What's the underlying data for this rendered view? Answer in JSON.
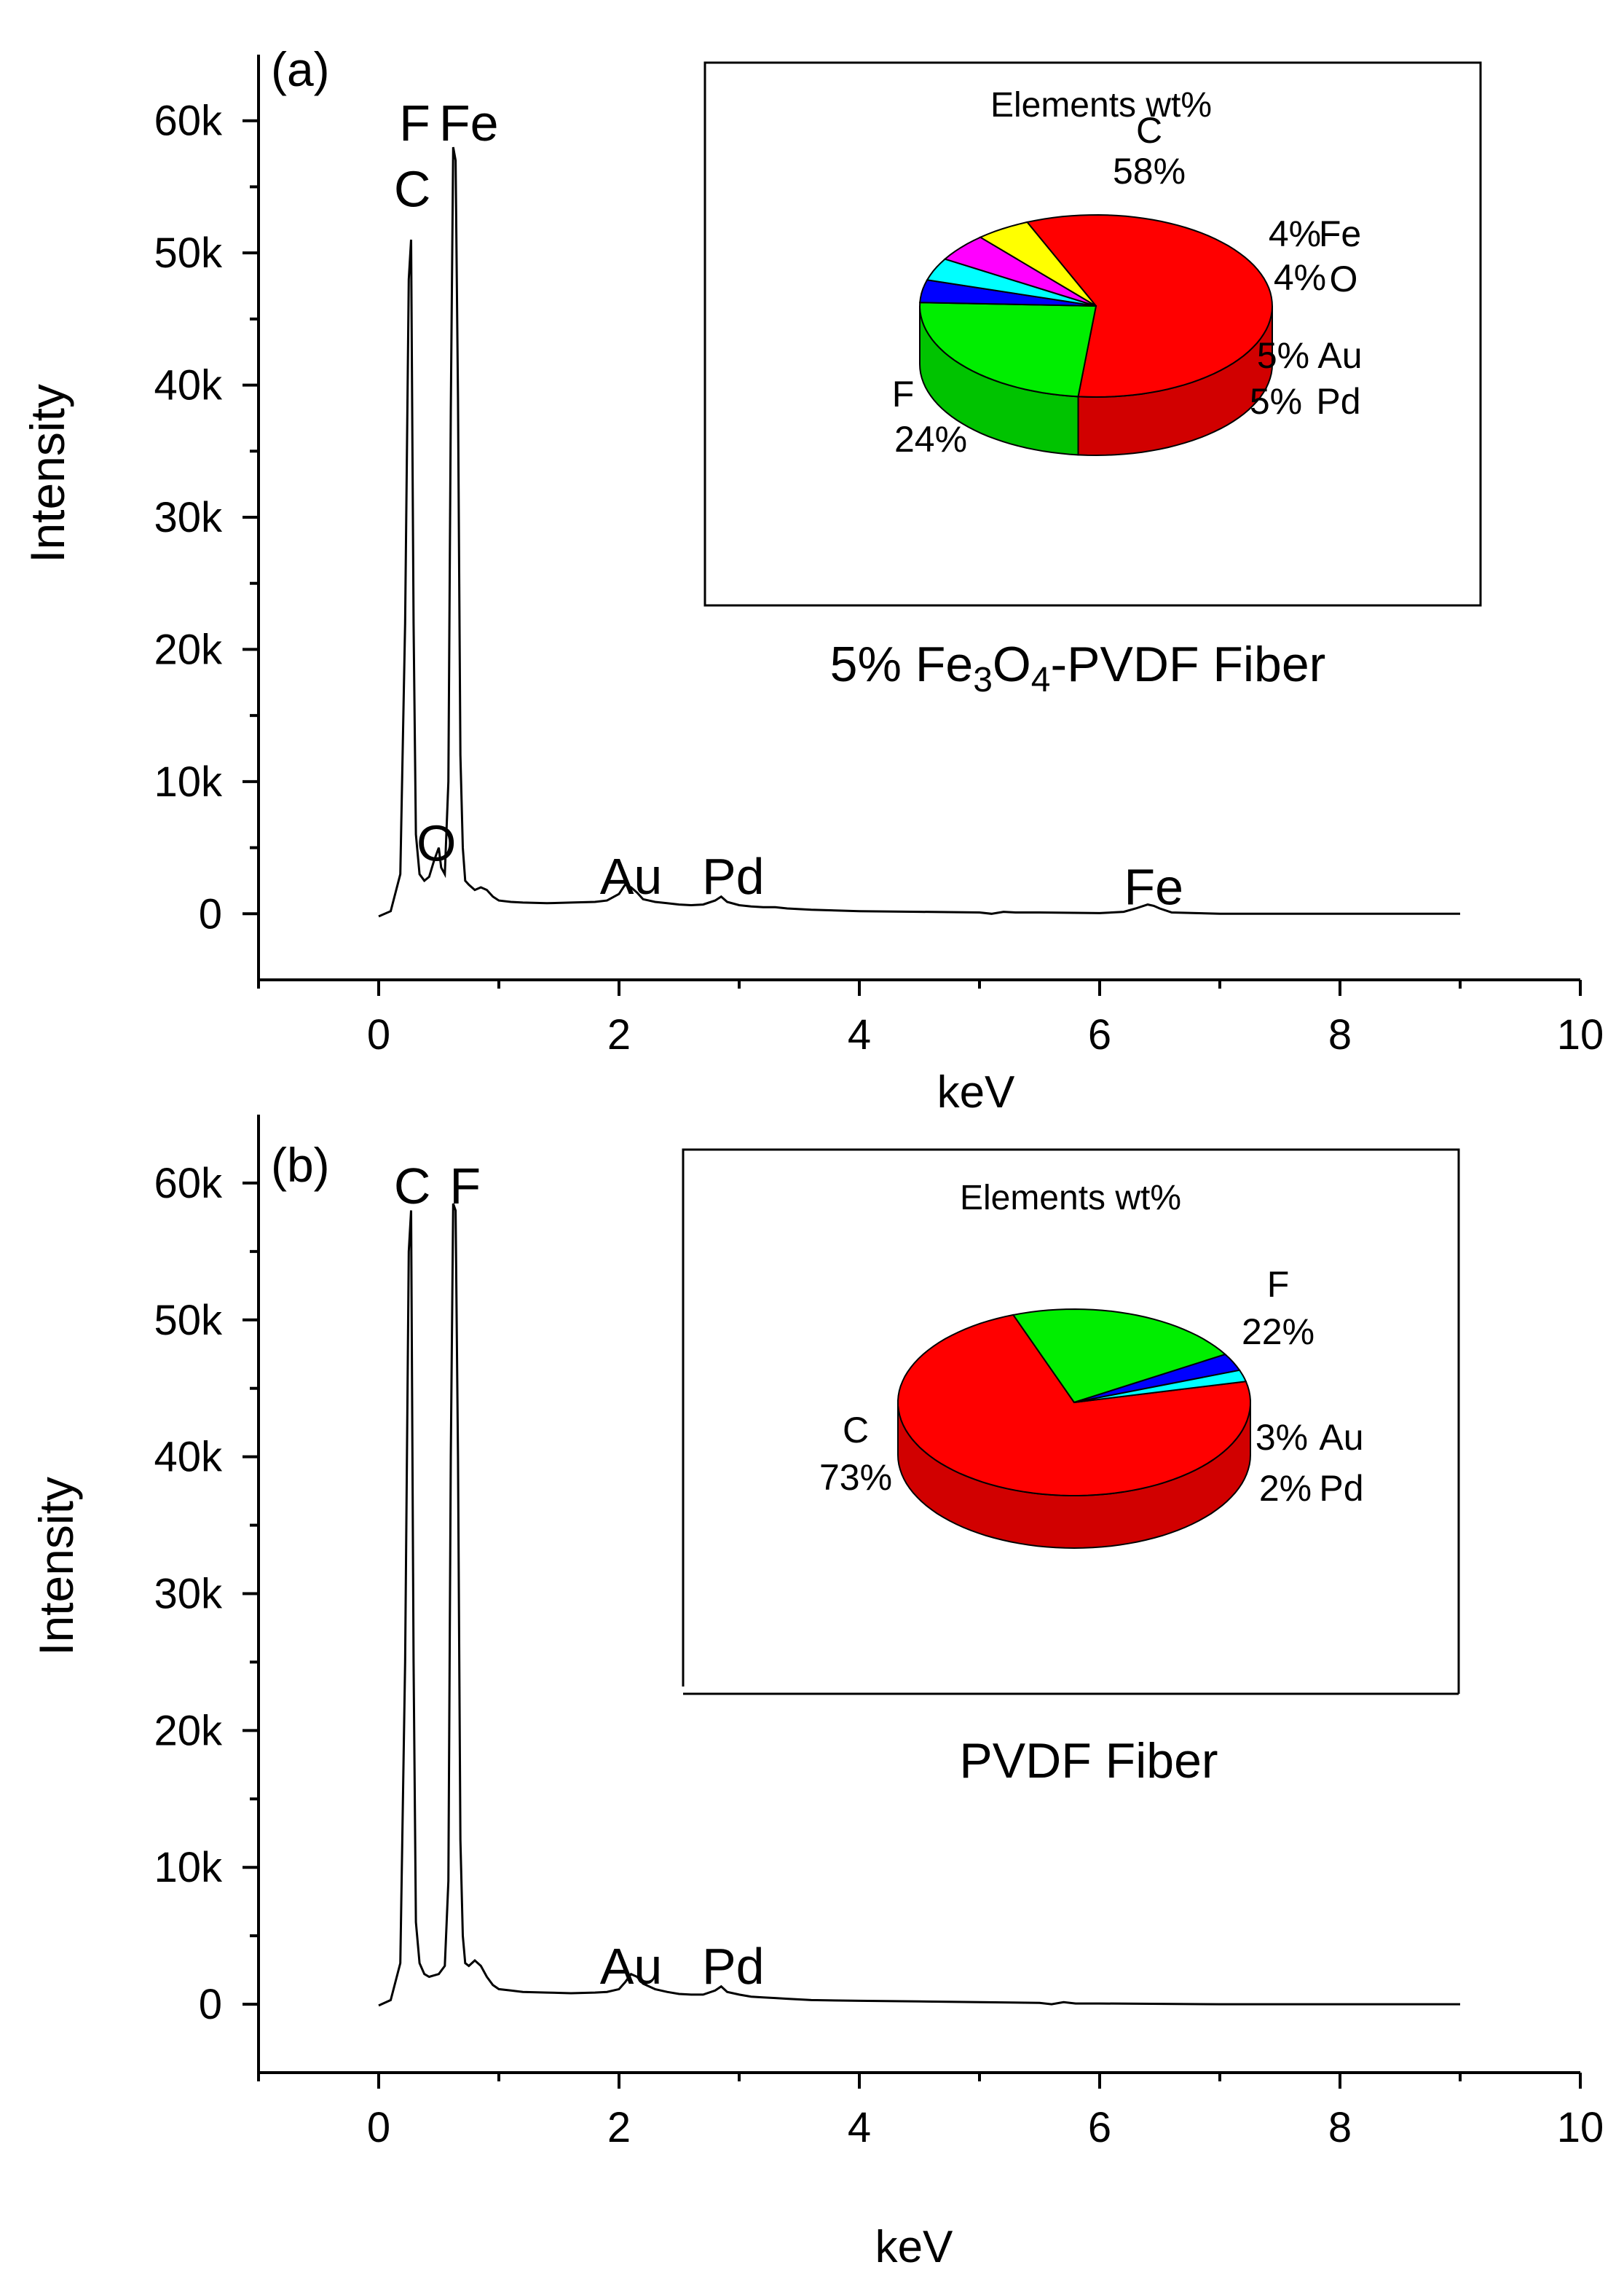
{
  "chart_data": [
    {
      "panel_label": "(a)",
      "type": "line",
      "xlabel": "keV",
      "ylabel": "Intensity",
      "xlim": [
        -1,
        10
      ],
      "ylim": [
        -5000,
        65000
      ],
      "xticks": [
        0,
        2,
        4,
        6,
        8,
        10
      ],
      "xtick_labels": [
        "0",
        "2",
        "4",
        "6",
        "8",
        "10"
      ],
      "yticks": [
        0,
        10000,
        20000,
        30000,
        40000,
        50000,
        60000
      ],
      "ytick_labels": [
        "0",
        "10k",
        "20k",
        "30k",
        "40k",
        "50k",
        "60k"
      ],
      "legend": "none",
      "grid": false,
      "series": [
        {
          "color": "#000000",
          "x": [
            0,
            0.1,
            0.18,
            0.22,
            0.25,
            0.27,
            0.29,
            0.31,
            0.34,
            0.38,
            0.42,
            0.46,
            0.5,
            0.52,
            0.55,
            0.58,
            0.6,
            0.62,
            0.64,
            0.66,
            0.68,
            0.7,
            0.72,
            0.75,
            0.8,
            0.85,
            0.9,
            0.95,
            1.0,
            1.1,
            1.2,
            1.4,
            1.6,
            1.8,
            1.9,
            2.0,
            2.05,
            2.1,
            2.15,
            2.2,
            2.3,
            2.4,
            2.5,
            2.6,
            2.7,
            2.8,
            2.85,
            2.9,
            3.0,
            3.1,
            3.2,
            3.3,
            3.4,
            3.6,
            4.0,
            4.5,
            5.0,
            5.1,
            5.2,
            5.3,
            5.5,
            6.0,
            6.2,
            6.3,
            6.4,
            6.45,
            6.5,
            6.6,
            6.8,
            7.0,
            8.0,
            9.0
          ],
          "y": [
            -200,
            200,
            3000,
            22000,
            48000,
            51000,
            22000,
            6000,
            3000,
            2500,
            2800,
            4000,
            5000,
            3500,
            3000,
            10000,
            38000,
            58000,
            57000,
            39000,
            12000,
            5000,
            2500,
            2200,
            1800,
            2000,
            1800,
            1300,
            1000,
            900,
            850,
            800,
            850,
            900,
            1000,
            1500,
            2200,
            2000,
            1600,
            1100,
            900,
            800,
            700,
            650,
            700,
            1000,
            1300,
            900,
            650,
            550,
            500,
            500,
            400,
            300,
            200,
            150,
            100,
            0,
            150,
            100,
            100,
            50,
            150,
            400,
            700,
            600,
            400,
            100,
            50,
            0,
            0,
            0
          ]
        }
      ],
      "annotations": [
        {
          "text": "C",
          "x": 0.28,
          "y": 53500
        },
        {
          "text": "F",
          "x": 0.3,
          "y": 58500
        },
        {
          "text": "Fe",
          "x": 0.75,
          "y": 58500
        },
        {
          "text": "O",
          "x": 0.48,
          "y": 4000
        },
        {
          "text": "Au",
          "x": 2.1,
          "y": 1500
        },
        {
          "text": "Pd",
          "x": 2.95,
          "y": 1500
        },
        {
          "text": "Fe",
          "x": 6.45,
          "y": 700
        }
      ],
      "inset": {
        "title": "Elements wt%",
        "caption_prefix": "5% Fe",
        "caption_sub1": "3",
        "caption_mid": "O",
        "caption_sub2": "4",
        "caption_suffix": "-PVDF Fiber",
        "pie": {
          "type": "pie",
          "slices": [
            {
              "name": "C",
              "percent_label": "58%",
              "value": 58,
              "color": "#ff0000"
            },
            {
              "name": "F",
              "percent_label": "24%",
              "value": 24,
              "color": "#00ee00"
            },
            {
              "name": "Fe",
              "percent_label": "4%",
              "value": 4,
              "color": "#0000ff"
            },
            {
              "name": "O",
              "percent_label": "4%",
              "value": 4,
              "color": "#00ffff"
            },
            {
              "name": "Au",
              "percent_label": "5%",
              "value": 5,
              "color": "#ff00ff"
            },
            {
              "name": "Pd",
              "percent_label": "5%",
              "value": 5,
              "color": "#ffff00"
            }
          ]
        }
      }
    },
    {
      "panel_label": "(b)",
      "type": "line",
      "xlabel": "keV",
      "ylabel": "Intensity",
      "xlim": [
        -1,
        10
      ],
      "ylim": [
        -5000,
        65000
      ],
      "xticks": [
        0,
        2,
        4,
        6,
        8,
        10
      ],
      "xtick_labels": [
        "0",
        "2",
        "4",
        "6",
        "8",
        "10"
      ],
      "yticks": [
        0,
        10000,
        20000,
        30000,
        40000,
        50000,
        60000
      ],
      "ytick_labels": [
        "0",
        "10k",
        "20k",
        "30k",
        "40k",
        "50k",
        "60k"
      ],
      "legend": "none",
      "grid": false,
      "series": [
        {
          "color": "#000000",
          "x": [
            0,
            0.1,
            0.18,
            0.22,
            0.25,
            0.27,
            0.29,
            0.31,
            0.34,
            0.38,
            0.42,
            0.46,
            0.5,
            0.55,
            0.58,
            0.6,
            0.62,
            0.64,
            0.66,
            0.68,
            0.7,
            0.72,
            0.75,
            0.8,
            0.85,
            0.9,
            0.95,
            1.0,
            1.1,
            1.2,
            1.4,
            1.6,
            1.8,
            1.9,
            2.0,
            2.05,
            2.1,
            2.15,
            2.2,
            2.3,
            2.4,
            2.5,
            2.6,
            2.7,
            2.8,
            2.85,
            2.9,
            3.0,
            3.1,
            3.2,
            3.3,
            3.4,
            3.6,
            4.0,
            4.5,
            5.0,
            5.5,
            5.6,
            5.7,
            5.8,
            6.0,
            7.0,
            8.0,
            9.0
          ],
          "y": [
            -100,
            300,
            3000,
            25000,
            55000,
            58000,
            25000,
            6000,
            3000,
            2200,
            2000,
            2100,
            2200,
            2800,
            9000,
            40000,
            58500,
            58000,
            40000,
            12000,
            5000,
            3000,
            2800,
            3200,
            2800,
            2000,
            1400,
            1100,
            1000,
            900,
            850,
            800,
            850,
            900,
            1100,
            1600,
            2200,
            2000,
            1500,
            1100,
            900,
            750,
            700,
            700,
            1000,
            1300,
            900,
            700,
            550,
            500,
            450,
            400,
            300,
            250,
            200,
            150,
            100,
            0,
            150,
            50,
            50,
            0,
            0,
            0
          ]
        }
      ],
      "annotations": [
        {
          "text": "C",
          "x": 0.28,
          "y": 58500
        },
        {
          "text": "F",
          "x": 0.72,
          "y": 58500
        },
        {
          "text": "Au",
          "x": 2.1,
          "y": 1500
        },
        {
          "text": "Pd",
          "x": 2.95,
          "y": 1500
        }
      ],
      "inset": {
        "title": "Elements wt%",
        "caption_prefix": "PVDF Fiber",
        "pie": {
          "type": "pie",
          "slices": [
            {
              "name": "C",
              "percent_label": "73%",
              "value": 73,
              "color": "#ff0000"
            },
            {
              "name": "F",
              "percent_label": "22%",
              "value": 22,
              "color": "#00ee00"
            },
            {
              "name": "Au",
              "percent_label": "3%",
              "value": 3,
              "color": "#0000ff"
            },
            {
              "name": "Pd",
              "percent_label": "2%",
              "value": 2,
              "color": "#00ffff"
            }
          ]
        }
      }
    }
  ]
}
